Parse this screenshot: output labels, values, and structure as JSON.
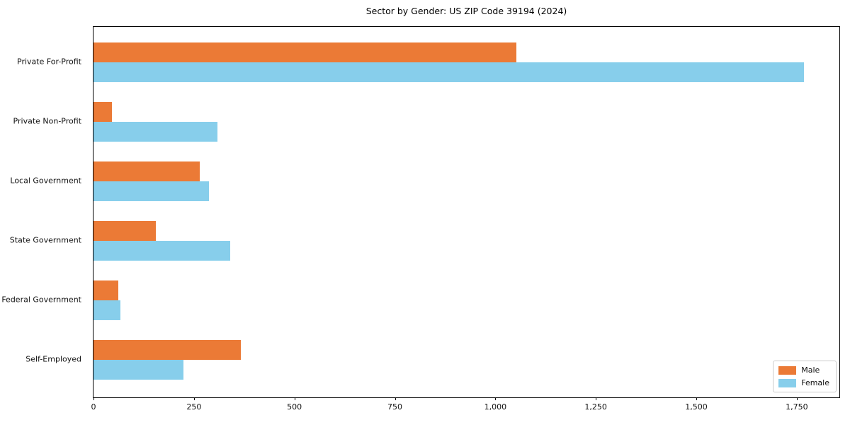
{
  "title": "Sector by Gender: US ZIP Code 39194 (2024)",
  "colors": {
    "male": "#EB7A36",
    "female": "#87CEEB",
    "axis": "#000000",
    "text": "#111111",
    "legend_border": "#cccccc",
    "background": "#ffffff"
  },
  "chart_data": {
    "type": "bar",
    "orientation": "horizontal",
    "title": "Sector by Gender: US ZIP Code 39194 (2024)",
    "categories": [
      "Private For-Profit",
      "Private Non-Profit",
      "Local Government",
      "State Government",
      "Federal Government",
      "Self-Employed"
    ],
    "series": [
      {
        "name": "Male",
        "color": "#EB7A36",
        "values": [
          1053,
          45,
          264,
          155,
          62,
          366
        ]
      },
      {
        "name": "Female",
        "color": "#87CEEB",
        "values": [
          1767,
          309,
          287,
          340,
          67,
          223
        ]
      }
    ],
    "x_ticks": [
      "0",
      "250",
      "500",
      "750",
      "1,000",
      "1,250",
      "1,500",
      "1,750"
    ],
    "x_tick_values": [
      0,
      250,
      500,
      750,
      1000,
      1250,
      1500,
      1750
    ],
    "xlim": [
      0,
      1856
    ],
    "xlabel": "",
    "ylabel": "",
    "grid": false,
    "legend_position": "lower right"
  },
  "legend": {
    "items": [
      {
        "label": "Male"
      },
      {
        "label": "Female"
      }
    ]
  }
}
